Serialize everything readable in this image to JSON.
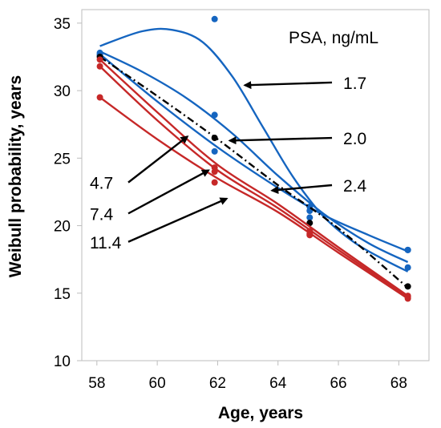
{
  "chart_data": {
    "type": "line",
    "title": "",
    "xlabel": "Age, years",
    "ylabel": "Weibull probability, years",
    "xlim": [
      57.5,
      69
    ],
    "ylim": [
      10,
      36
    ],
    "xticks": [
      58,
      60,
      62,
      64,
      66,
      68
    ],
    "yticks": [
      10,
      15,
      20,
      25,
      30,
      35
    ],
    "grid": false,
    "legend_title": "PSA, ng/mL",
    "x": [
      58.1,
      61.9,
      65.05,
      68.3
    ],
    "series": [
      {
        "name": "1.7",
        "color": "#1565c0",
        "values": [
          32.7,
          35.3,
          21.1,
          16.9
        ],
        "fit": [
          [
            58.1,
            33.3
          ],
          [
            59.5,
            34.4
          ],
          [
            60.5,
            34.5
          ],
          [
            61.5,
            33.6
          ],
          [
            62.5,
            31.0
          ],
          [
            63.5,
            27.3
          ],
          [
            64.5,
            23.6
          ],
          [
            65.5,
            20.7
          ],
          [
            66.5,
            18.8
          ],
          [
            67.5,
            17.5
          ],
          [
            68.3,
            16.6
          ]
        ]
      },
      {
        "name": "2.0",
        "color": "#1565c0",
        "values": [
          32.8,
          28.2,
          21.4,
          18.2
        ],
        "fit": [
          [
            58.1,
            32.9
          ],
          [
            59.5,
            31.4
          ],
          [
            61,
            29.4
          ],
          [
            62.5,
            26.8
          ],
          [
            64,
            23.7
          ],
          [
            65.5,
            20.9
          ],
          [
            67,
            18.7
          ],
          [
            68.3,
            17.3
          ]
        ]
      },
      {
        "name": "2.4",
        "color": "#1565c0",
        "values": [
          32.6,
          25.5,
          20.6,
          18.2
        ],
        "fit": [
          [
            58.1,
            32.7
          ],
          [
            60,
            29.2
          ],
          [
            62,
            25.8
          ],
          [
            64,
            22.8
          ],
          [
            65.5,
            20.8
          ],
          [
            67,
            19.3
          ],
          [
            68.3,
            18.1
          ]
        ]
      },
      {
        "name": "",
        "color": "#000000",
        "dash": true,
        "values": [
          32.5,
          26.5,
          20.2,
          15.5
        ],
        "fit": [
          [
            58.1,
            32.5
          ],
          [
            60,
            29.6
          ],
          [
            62,
            26.4
          ],
          [
            64,
            23.0
          ],
          [
            66,
            19.8
          ],
          [
            68.3,
            15.4
          ]
        ]
      },
      {
        "name": "4.7",
        "color": "#c62828",
        "values": [
          32.3,
          24.3,
          19.6,
          14.8
        ],
        "fit": [
          [
            58.1,
            32.3
          ],
          [
            60,
            28.4
          ],
          [
            62,
            24.5
          ],
          [
            64,
            21.6
          ],
          [
            66,
            18.4
          ],
          [
            68.3,
            14.8
          ]
        ]
      },
      {
        "name": "7.4",
        "color": "#c62828",
        "values": [
          31.8,
          24.0,
          19.4,
          14.7
        ],
        "fit": [
          [
            58.1,
            31.8
          ],
          [
            60,
            27.8
          ],
          [
            62,
            24.1
          ],
          [
            64,
            21.3
          ],
          [
            66,
            18.2
          ],
          [
            68.3,
            14.7
          ]
        ]
      },
      {
        "name": "11.4",
        "color": "#c62828",
        "values": [
          29.5,
          23.2,
          19.3,
          14.6
        ],
        "fit": [
          [
            58.1,
            29.5
          ],
          [
            60,
            26.4
          ],
          [
            62,
            23.5
          ],
          [
            64,
            21.0
          ],
          [
            66,
            18.0
          ],
          [
            68.3,
            14.6
          ]
        ]
      }
    ],
    "annotations": [
      {
        "label": "1.7",
        "color": "#000000",
        "arrow_to": [
          62.9,
          30.4
        ],
        "text_at": [
          66.0,
          30.6
        ]
      },
      {
        "label": "2.0",
        "color": "#000000",
        "arrow_to": [
          62.4,
          26.3
        ],
        "text_at": [
          66.0,
          26.5
        ]
      },
      {
        "label": "2.4",
        "color": "#000000",
        "arrow_to": [
          63.8,
          22.6
        ],
        "text_at": [
          66.0,
          23.0
        ]
      },
      {
        "label": "4.7",
        "color": "#000000",
        "arrow_to": [
          61.0,
          26.6
        ],
        "text_at": [
          57.5,
          23.2
        ]
      },
      {
        "label": "7.4",
        "color": "#000000",
        "arrow_to": [
          61.7,
          24.1
        ],
        "text_at": [
          57.5,
          20.9
        ]
      },
      {
        "label": "11.4",
        "color": "#000000",
        "arrow_to": [
          62.3,
          22.0
        ],
        "text_at": [
          57.5,
          18.8
        ]
      }
    ]
  }
}
